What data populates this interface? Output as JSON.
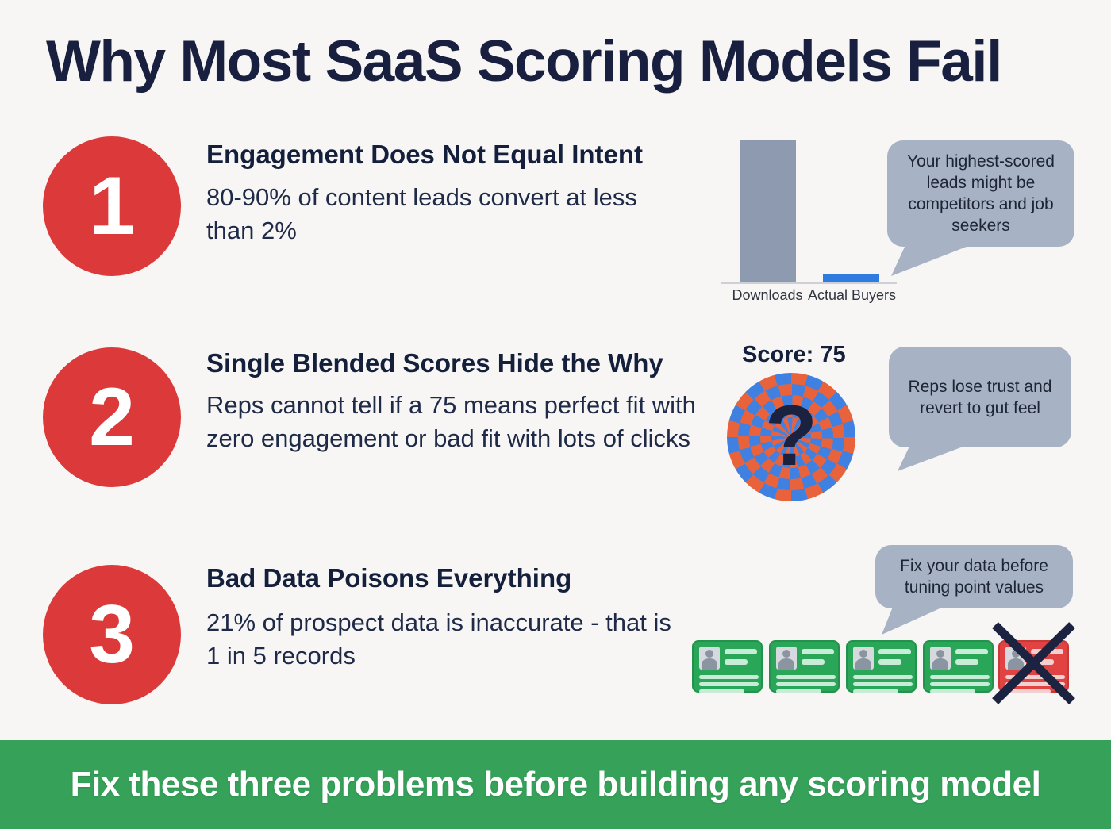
{
  "title": "Why Most SaaS Scoring Models Fail",
  "sections": [
    {
      "number": "1",
      "heading": "Engagement Does Not Equal Intent",
      "body": "80-90% of content leads convert at less than 2%",
      "bubble": "Your highest-scored leads might be competitors and job seekers"
    },
    {
      "number": "2",
      "heading": "Single Blended Scores Hide the Why",
      "body": "Reps cannot tell if a 75 means perfect fit with zero engagement or bad fit with lots of clicks",
      "score_label": "Score: 75",
      "bubble": "Reps lose trust and revert to gut feel"
    },
    {
      "number": "3",
      "heading": "Bad Data Poisons Everything",
      "body": "21% of prospect data is inaccurate - that is 1 in 5 records",
      "bubble": "Fix your data before tuning point values"
    }
  ],
  "chart_data": {
    "type": "bar",
    "categories": [
      "Downloads",
      "Actual Buyers"
    ],
    "values": [
      100,
      6
    ],
    "title": "",
    "xlabel": "",
    "ylabel": "",
    "ylim": [
      0,
      100
    ],
    "grid": false,
    "legend": false,
    "bar_colors": [
      "#8e9ab0",
      "#2e7ce0"
    ]
  },
  "icons": {
    "question_mark": "?"
  },
  "cards": {
    "good_count": 4,
    "bad_count": 1
  },
  "footer": {
    "banner_text": "Fix these three problems before building any scoring model"
  },
  "colors": {
    "background": "#f7f6f4",
    "navy_text": "#19203f",
    "accent_red": "#dc3a3a",
    "bubble_gray": "#a7b3c4",
    "bar_gray": "#8e9ab0",
    "bar_blue": "#2e7ce0",
    "spiral_orange": "#e8633c",
    "spiral_blue": "#4080e0",
    "card_green": "#2aa658",
    "card_red": "#e14343",
    "footer_green": "#35a159",
    "x_mark_navy": "#1b2340"
  }
}
